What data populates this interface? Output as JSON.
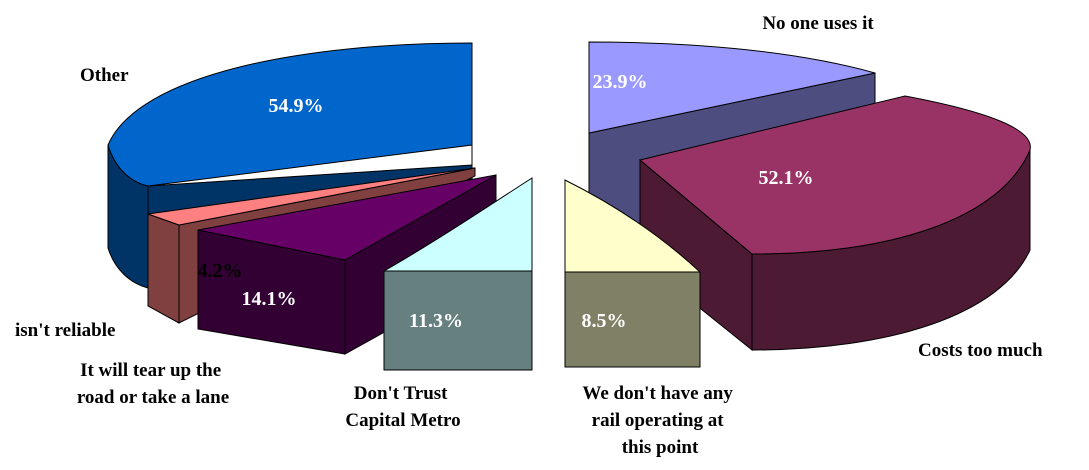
{
  "chart_data": [
    {
      "type": "pie",
      "title": "",
      "style": "3d-exploded",
      "slices": [
        {
          "label": "Other",
          "value": 54.9,
          "value_label": "54.9%",
          "color": "#0066CC",
          "side_color": "#003366",
          "label_color": "#FFFFFF"
        },
        {
          "label": "isn't reliable",
          "value": 4.2,
          "value_label": "4.2%",
          "color": "#FF8080",
          "side_color": "#804040",
          "label_color": "#000000"
        },
        {
          "label": "It will tear up the road or take a lane",
          "value": 14.1,
          "value_label": "14.1%",
          "color": "#660066",
          "side_color": "#330033",
          "label_color": "#FFFFFF"
        },
        {
          "label": "Don't Trust Capital Metro",
          "value": 11.3,
          "value_label": "11.3%",
          "color": "#CCFFFF",
          "side_color": "#668080",
          "label_color": "#FFFFFF"
        }
      ]
    },
    {
      "type": "pie",
      "title": "",
      "style": "3d-exploded",
      "slices": [
        {
          "label": "No one uses it",
          "value": 23.9,
          "value_label": "23.9%",
          "color": "#9999FF",
          "side_color": "#4D4D80",
          "label_color": "#FFFFFF"
        },
        {
          "label": "Costs too much",
          "value": 52.1,
          "value_label": "52.1%",
          "color": "#993366",
          "side_color": "#4D1A33",
          "label_color": "#FFFFFF"
        },
        {
          "label": "We don't have any rail operating at this point",
          "value": 8.5,
          "value_label": "8.5%",
          "color": "#FFFFCC",
          "side_color": "#808066",
          "label_color": "#FFFFFF"
        }
      ]
    }
  ]
}
